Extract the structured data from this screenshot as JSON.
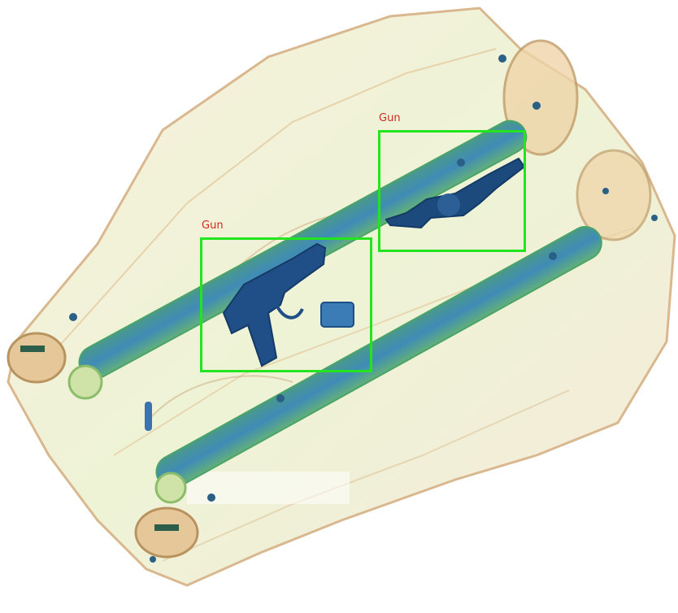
{
  "colors": {
    "box": "#22e41f",
    "label": "#d22a1e",
    "organic": "#e7c9a1",
    "mixed": "#9bd27f",
    "metal": "#2a6aa8"
  },
  "detections": [
    {
      "label": "Gun"
    },
    {
      "label": "Gun"
    }
  ]
}
